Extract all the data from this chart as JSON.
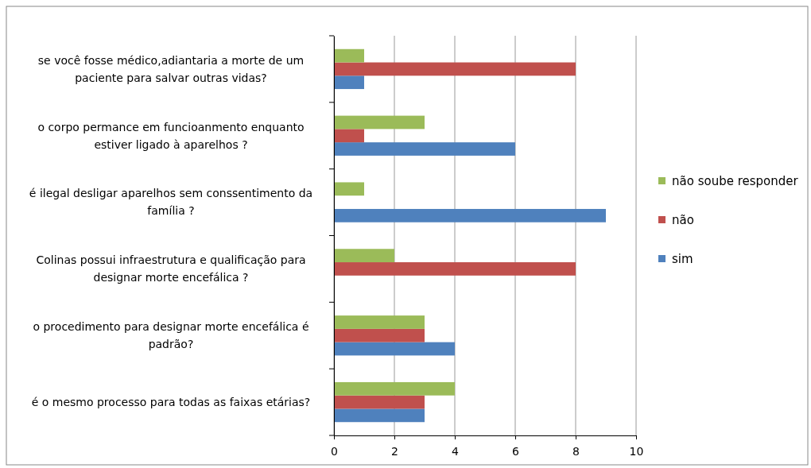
{
  "chart_data": {
    "type": "bar",
    "orientation": "horizontal",
    "categories": [
      "se você fosse médico,adiantaria a morte de um paciente para salvar outras vidas?",
      "o corpo permance em funcioanmento enquanto estiver ligado à aparelhos ?",
      "é ilegal desligar aparelhos sem conssentimento da família ?",
      "Colinas possui infraestrutura e qualificação para designar morte encefálica ?",
      "o procedimento para designar morte encefálica é padrão?",
      "é o mesmo processo para todas as faixas etárias?"
    ],
    "series": [
      {
        "name": "sim",
        "color": "#4f81bd",
        "values": [
          1,
          6,
          9,
          0,
          4,
          3
        ]
      },
      {
        "name": "não",
        "color": "#c0504d",
        "values": [
          8,
          1,
          0,
          8,
          3,
          3
        ]
      },
      {
        "name": "não soube responder",
        "color": "#9bbb59",
        "values": [
          1,
          3,
          1,
          2,
          3,
          4
        ]
      }
    ],
    "xlim": [
      0,
      10
    ],
    "xticks": [
      0,
      2,
      4,
      6,
      8,
      10
    ],
    "grid": "x",
    "legend": "right"
  }
}
